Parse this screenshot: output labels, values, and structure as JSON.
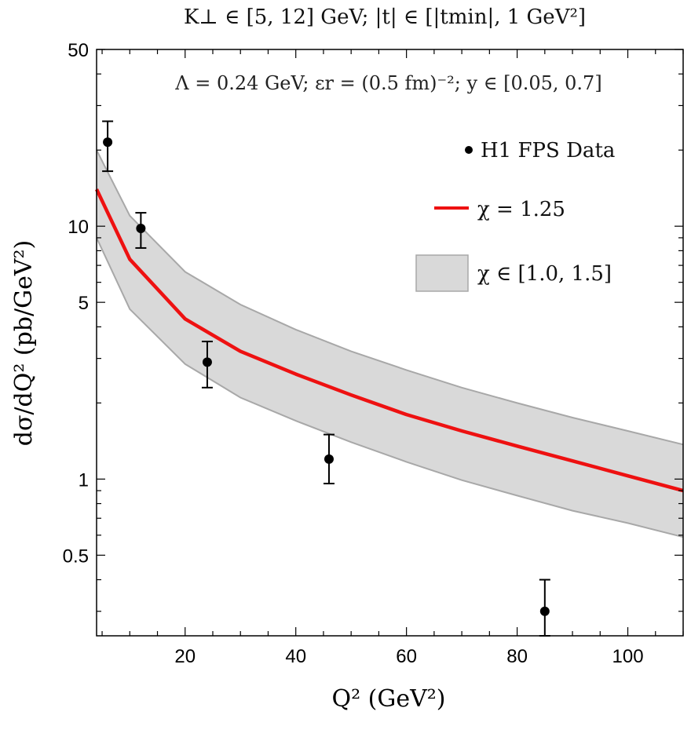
{
  "chart_data": {
    "type": "line",
    "title": "K⊥ ∈ [5, 12] GeV;  |t| ∈ [|tmin|, 1 GeV²]",
    "subtitle": "Λ = 0.24 GeV;  εr = (0.5 fm)⁻²;  y ∈ [0.05, 0.7]",
    "xlabel": "Q² (GeV²)",
    "ylabel": "dσ/dQ² (pb/GeV²)",
    "xscale": "linear",
    "yscale": "log",
    "xlim": [
      4,
      110
    ],
    "ylim": [
      0.24,
      50
    ],
    "xticks": [
      20,
      40,
      60,
      80,
      100
    ],
    "xtick_labels": [
      "20",
      "40",
      "60",
      "80",
      "100"
    ],
    "yticks": [
      0.5,
      1,
      5,
      10,
      50
    ],
    "ytick_labels": [
      "0.5",
      "1",
      "5",
      "10",
      "50"
    ],
    "legend_position": "top-right",
    "series": [
      {
        "name": "H1 FPS Data",
        "kind": "errorbar",
        "color": "#000000",
        "x": [
          6,
          12,
          24,
          46,
          85
        ],
        "y": [
          21.5,
          9.8,
          2.9,
          1.2,
          0.3
        ],
        "yerr_low": [
          16.5,
          8.2,
          2.3,
          0.96,
          0.24
        ],
        "yerr_high": [
          26.0,
          11.3,
          3.5,
          1.5,
          0.4
        ]
      },
      {
        "name": "χ = 1.25",
        "kind": "line",
        "color": "#ee1111",
        "x": [
          4,
          10,
          20,
          30,
          40,
          50,
          60,
          70,
          80,
          90,
          100,
          110
        ],
        "y": [
          14.0,
          7.4,
          4.3,
          3.2,
          2.6,
          2.15,
          1.8,
          1.55,
          1.35,
          1.18,
          1.03,
          0.9
        ]
      },
      {
        "name": "χ ∈ [1.0, 1.5]",
        "kind": "band",
        "color": "#d9d9d9",
        "edge_color": "#a8a8a8",
        "x": [
          4,
          10,
          20,
          30,
          40,
          50,
          60,
          70,
          80,
          90,
          100,
          110
        ],
        "y_low": [
          9.0,
          4.7,
          2.85,
          2.1,
          1.7,
          1.4,
          1.17,
          0.99,
          0.86,
          0.75,
          0.67,
          0.59
        ],
        "y_high": [
          20.0,
          11.0,
          6.6,
          4.9,
          3.9,
          3.2,
          2.7,
          2.3,
          2.0,
          1.75,
          1.55,
          1.37
        ]
      }
    ]
  }
}
